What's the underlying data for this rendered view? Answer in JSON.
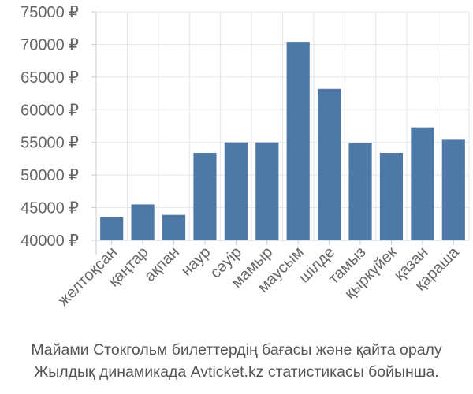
{
  "chart_data": {
    "type": "bar",
    "categories": [
      "желтоқсан",
      "қаңтар",
      "ақпан",
      "наур",
      "сәуір",
      "мамыр",
      "маусым",
      "шілде",
      "тамыз",
      "қыркүйек",
      "қазан",
      "қараша"
    ],
    "values": [
      43500,
      45500,
      43900,
      53400,
      55000,
      55000,
      70400,
      63200,
      54900,
      53400,
      57300,
      55400
    ],
    "yticks": [
      "40000 ₽",
      "45000 ₽",
      "50000 ₽",
      "55000 ₽",
      "60000 ₽",
      "65000 ₽",
      "70000 ₽",
      "75000 ₽"
    ],
    "ytick_values": [
      40000,
      45000,
      50000,
      55000,
      60000,
      65000,
      70000,
      75000
    ],
    "ylim": [
      40000,
      75000
    ],
    "bar_color": "#4e79a7",
    "grid_color": "#e5e5e5",
    "axis_color": "#cccccc",
    "tick_label_color": "#666666",
    "grid": true
  },
  "caption": {
    "line1": "Майами Стокгольм билеттердің бағасы және қайта оралу",
    "line2": "Жылдық динамикада Avticket.kz статистикасы бойынша."
  }
}
